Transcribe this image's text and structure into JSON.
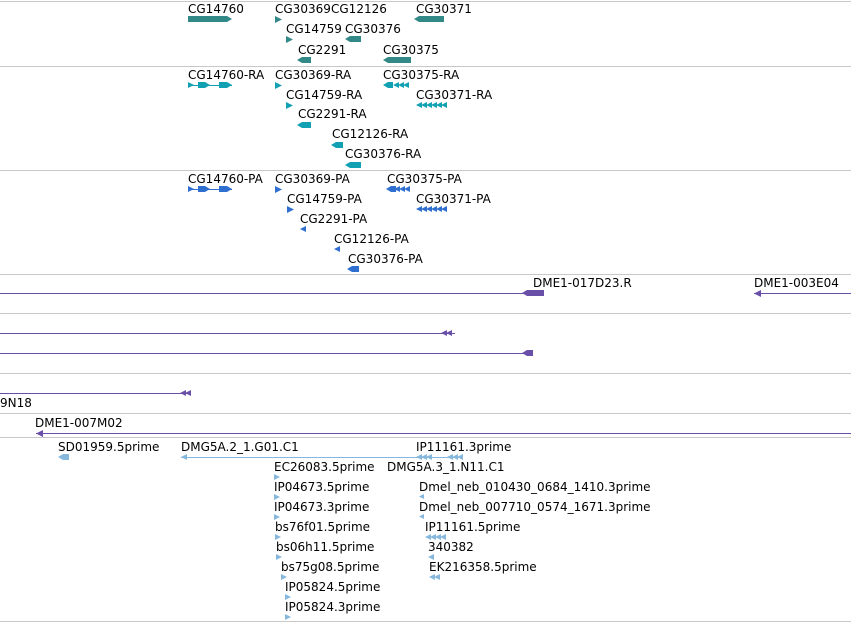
{
  "colors": {
    "gene": "#338888",
    "transcript": "#11a1b3",
    "protein": "#2f6fd0",
    "clone": "#6a4fa8",
    "est": "#86b8de",
    "separator": "#c8c8c8"
  },
  "tracks": [
    {
      "name": "genes",
      "color_key": "gene",
      "features": [
        {
          "label": "CG14760"
        },
        {
          "label": "CG30369"
        },
        {
          "label": "CG12126"
        },
        {
          "label": "CG30371"
        },
        {
          "label": "CG14759"
        },
        {
          "label": "CG30376"
        },
        {
          "label": "CG2291"
        },
        {
          "label": "CG30375"
        }
      ]
    },
    {
      "name": "transcripts",
      "color_key": "transcript",
      "features": [
        {
          "label": "CG14760-RA"
        },
        {
          "label": "CG30369-RA"
        },
        {
          "label": "CG30375-RA"
        },
        {
          "label": "CG14759-RA"
        },
        {
          "label": "CG30371-RA"
        },
        {
          "label": "CG2291-RA"
        },
        {
          "label": "CG12126-RA"
        },
        {
          "label": "CG30376-RA"
        }
      ]
    },
    {
      "name": "proteins",
      "color_key": "protein",
      "features": [
        {
          "label": "CG14760-PA"
        },
        {
          "label": "CG30369-PA"
        },
        {
          "label": "CG30375-PA"
        },
        {
          "label": "CG14759-PA"
        },
        {
          "label": "CG30371-PA"
        },
        {
          "label": "CG2291-PA"
        },
        {
          "label": "CG12126-PA"
        },
        {
          "label": "CG30376-PA"
        }
      ]
    },
    {
      "name": "clones",
      "color_key": "clone",
      "features": [
        {
          "label": "DME1-017D23.R"
        },
        {
          "label": "DME1-003E04"
        },
        {
          "label": ""
        },
        {
          "label": ""
        },
        {
          "label": "9N18"
        },
        {
          "label": "DME1-007M02"
        }
      ]
    },
    {
      "name": "ests",
      "color_key": "est",
      "features": [
        {
          "label": "SD01959.5prime"
        },
        {
          "label": "DMG5A.2_1.G01.C1"
        },
        {
          "label": "IP11161.3prime"
        },
        {
          "label": "EC26083.5prime"
        },
        {
          "label": "DMG5A.3_1.N11.C1"
        },
        {
          "label": "IP04673.5prime"
        },
        {
          "label": "Dmel_neb_010430_0684_1410.3prime"
        },
        {
          "label": "IP04673.3prime"
        },
        {
          "label": "Dmel_neb_007710_0574_1671.3prime"
        },
        {
          "label": "bs76f01.5prime"
        },
        {
          "label": "IP11161.5prime"
        },
        {
          "label": "bs06h11.5prime"
        },
        {
          "label": "340382"
        },
        {
          "label": "bs75g08.5prime"
        },
        {
          "label": "EK216358.5prime"
        },
        {
          "label": "IP05824.5prime"
        },
        {
          "label": "IP05824.3prime"
        }
      ]
    }
  ]
}
